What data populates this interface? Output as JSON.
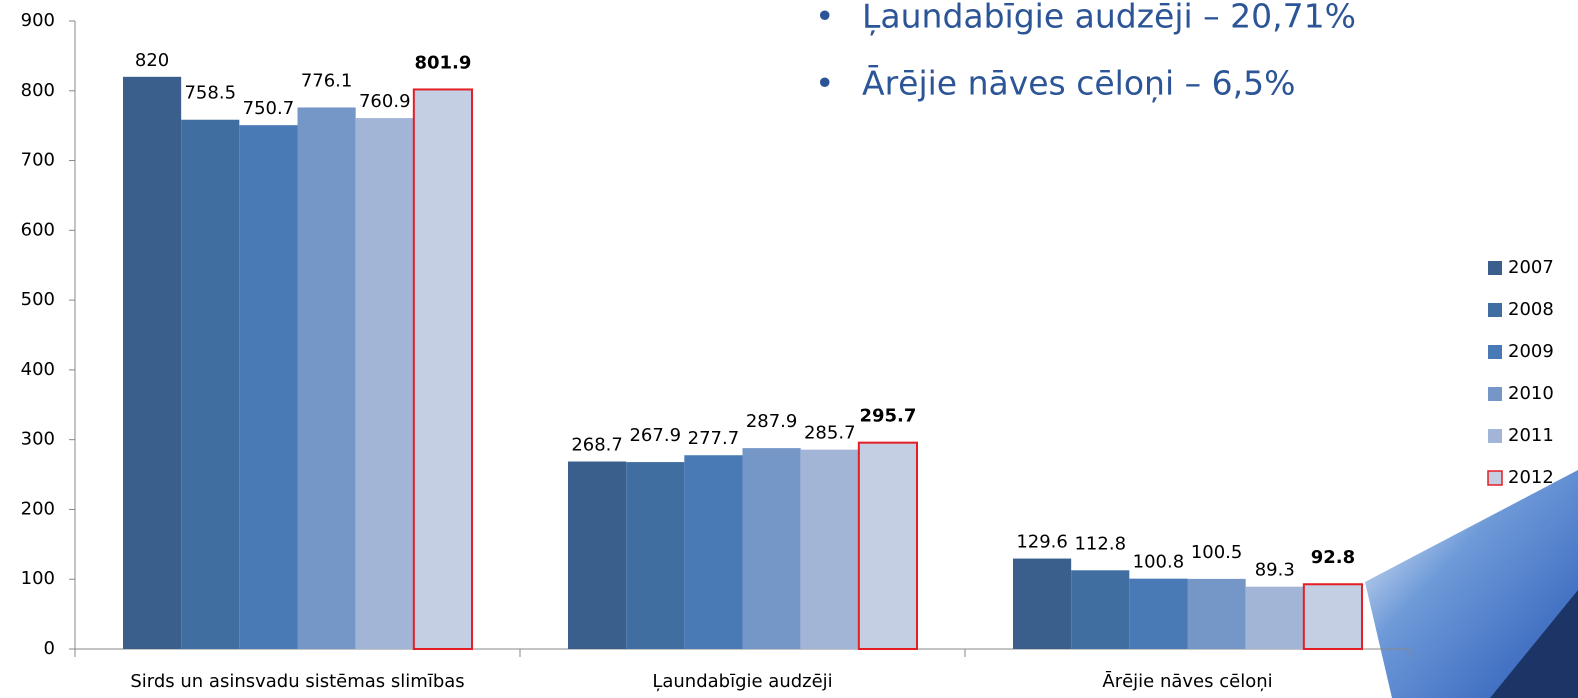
{
  "chart_data": {
    "type": "bar",
    "annotations": [
      "Ļaundabīgie audzēji – 20,71%",
      "Ārējie nāves cēloņi – 6,5%"
    ],
    "categories": [
      "Sirds un asinsvadu sistēmas slimības",
      "Ļaundabīgie audzēji",
      "Ārējie nāves cēloņi"
    ],
    "series": [
      {
        "name": "2007",
        "color": "#3a5f8c",
        "values": [
          820,
          268.7,
          129.6
        ]
      },
      {
        "name": "2008",
        "color": "#416ea1",
        "values": [
          758.5,
          267.9,
          112.8
        ]
      },
      {
        "name": "2009",
        "color": "#4a7ab6",
        "values": [
          750.7,
          277.7,
          100.8
        ]
      },
      {
        "name": "2010",
        "color": "#7597c8",
        "values": [
          776.1,
          287.9,
          100.5
        ]
      },
      {
        "name": "2011",
        "color": "#a3b5d7",
        "values": [
          760.9,
          285.7,
          89.3
        ]
      },
      {
        "name": "2012",
        "color": "#c5cfe3",
        "edge_color": "#e31e24",
        "label_bold": true,
        "values": [
          801.9,
          295.7,
          92.8
        ]
      }
    ],
    "ylim": [
      0,
      900
    ],
    "yticks": [
      0,
      100,
      200,
      300,
      400,
      500,
      600,
      700,
      800,
      900
    ],
    "legend": "right"
  }
}
